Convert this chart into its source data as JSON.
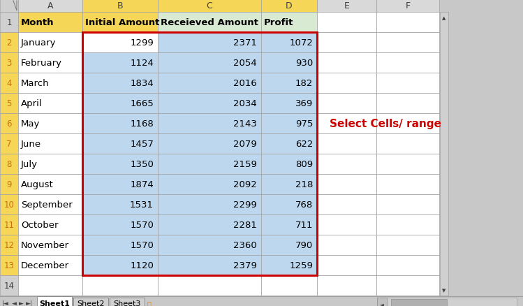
{
  "months": [
    "January",
    "February",
    "March",
    "April",
    "May",
    "June",
    "July",
    "August",
    "September",
    "October",
    "November",
    "December"
  ],
  "initial_amount": [
    1299,
    1124,
    1834,
    1665,
    1168,
    1457,
    1350,
    1874,
    1531,
    1570,
    1570,
    1120
  ],
  "received_amount": [
    2371,
    2054,
    2016,
    2034,
    2143,
    2079,
    2159,
    2092,
    2299,
    2281,
    2360,
    2379
  ],
  "profit": [
    1072,
    930,
    182,
    369,
    975,
    622,
    809,
    218,
    768,
    711,
    790,
    1259
  ],
  "headers": [
    "Month",
    "Initial Amount",
    "Receieved Amount",
    "Profit"
  ],
  "col_letters": [
    "A",
    "B",
    "C",
    "D",
    "E",
    "F"
  ],
  "row_numbers": [
    "1",
    "2",
    "3",
    "4",
    "5",
    "6",
    "7",
    "8",
    "9",
    "10",
    "11",
    "12",
    "13",
    "14"
  ],
  "sheet_tabs": [
    "Sheet1",
    "Sheet2",
    "Sheet3"
  ],
  "annotation": "Select Cells/ range",
  "annotation_color": "#CC0000",
  "header_bg_yellow": "#F5D657",
  "header_bg_green": "#D9EAD3",
  "data_bg_blue": "#BDD7EE",
  "data_bg_white": "#FFFFFF",
  "row_header_bg": "#F5D657",
  "col_header_bg": "#D9D9D9",
  "col_header_highlighted": "#F5D657",
  "selection_border_color": "#CC0000",
  "cell_border_color": "#C0C0C0",
  "tab_active_bg": "#FFFFFF",
  "tab_inactive_bg": "#D0D0D0",
  "spreadsheet_bg": "#FFFFFF",
  "outer_bg": "#C8C8C8",
  "row_num_color": "#C8710A"
}
